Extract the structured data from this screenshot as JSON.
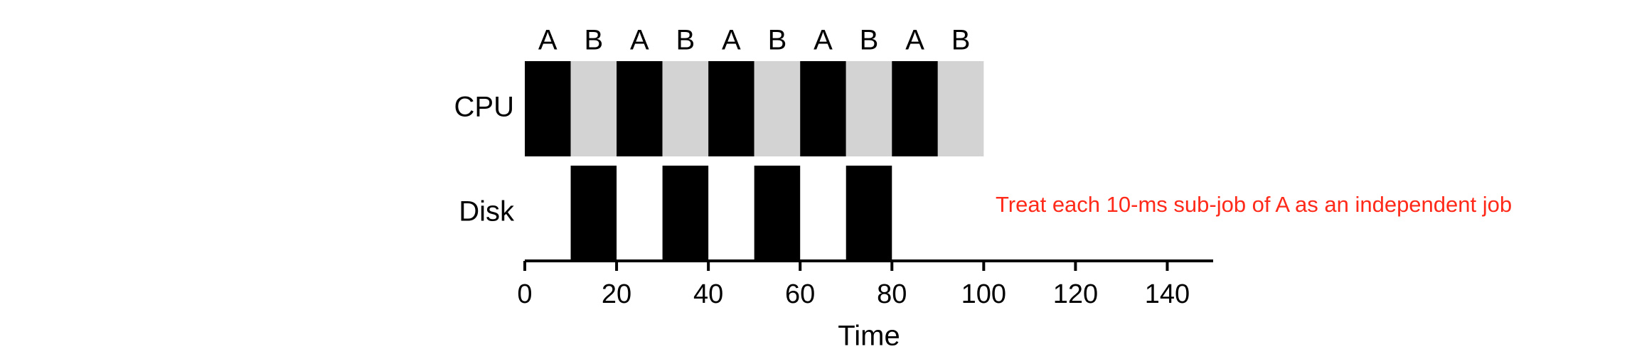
{
  "chart_data": {
    "type": "timeline",
    "xlabel": "Time",
    "xlim": [
      0,
      150
    ],
    "xticks": [
      0,
      20,
      40,
      60,
      80,
      100,
      120,
      140
    ],
    "annotation": "Treat each 10-ms sub-job of A as an independent job",
    "annotation_color": "#ff2a1a",
    "rows": [
      {
        "name": "CPU",
        "segments": [
          {
            "label": "A",
            "start": 0,
            "end": 10,
            "color": "#000000"
          },
          {
            "label": "B",
            "start": 10,
            "end": 20,
            "color": "#d3d3d3"
          },
          {
            "label": "A",
            "start": 20,
            "end": 30,
            "color": "#000000"
          },
          {
            "label": "B",
            "start": 30,
            "end": 40,
            "color": "#d3d3d3"
          },
          {
            "label": "A",
            "start": 40,
            "end": 50,
            "color": "#000000"
          },
          {
            "label": "B",
            "start": 50,
            "end": 60,
            "color": "#d3d3d3"
          },
          {
            "label": "A",
            "start": 60,
            "end": 70,
            "color": "#000000"
          },
          {
            "label": "B",
            "start": 70,
            "end": 80,
            "color": "#d3d3d3"
          },
          {
            "label": "A",
            "start": 80,
            "end": 90,
            "color": "#000000"
          },
          {
            "label": "B",
            "start": 90,
            "end": 100,
            "color": "#d3d3d3"
          }
        ]
      },
      {
        "name": "Disk",
        "segments": [
          {
            "start": 10,
            "end": 20,
            "color": "#000000"
          },
          {
            "start": 30,
            "end": 40,
            "color": "#000000"
          },
          {
            "start": 50,
            "end": 60,
            "color": "#000000"
          },
          {
            "start": 70,
            "end": 80,
            "color": "#000000"
          }
        ]
      }
    ]
  }
}
